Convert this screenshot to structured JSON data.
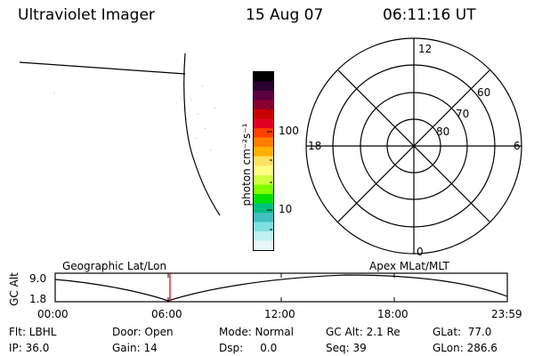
{
  "header": {
    "instrument": "Ultraviolet Imager",
    "date": "15 Aug 07",
    "time": "06:11:16 UT"
  },
  "colorbar": {
    "unit_label": "photon cm⁻²s⁻¹",
    "tick_100": "100",
    "tick_10": "10",
    "colors": [
      "#000000",
      "#2a0030",
      "#5a0040",
      "#8a0030",
      "#c80000",
      "#e00020",
      "#ff4000",
      "#ff8000",
      "#ffb000",
      "#ffe060",
      "#ffff80",
      "#d0ff40",
      "#80ff00",
      "#00e000",
      "#00c080",
      "#40c0c0",
      "#80e0e0",
      "#c0f0f0",
      "#e8f8f8"
    ]
  },
  "polar_plot": {
    "label_12": "12",
    "label_18": "18",
    "label_6": "6",
    "label_0": "0",
    "label_60": "60",
    "label_70": "70",
    "label_80": "80"
  },
  "orbit_panel": {
    "y_axis_label": "GC Alt",
    "y_max": "9.0",
    "y_min": "1.8",
    "left_title": "Geographic Lat/Lon",
    "right_title": "Apex MLat/MLT",
    "x_ticks": [
      "00:00",
      "06:00",
      "12:00",
      "18:00",
      "23:59"
    ],
    "marker_color": "#cc0000"
  },
  "status": {
    "flt": "Flt: LBHL",
    "ip": "IP: 36.0",
    "door": "Door: Open",
    "gain": "Gain: 14",
    "mode": "Mode: Normal",
    "dsp": "Dsp:     0.0",
    "gc_alt": "GC Alt: 2.1 Re",
    "seq": "Seq: 39",
    "glat": "GLat:  77.0",
    "glon": "GLon: 286.6"
  }
}
